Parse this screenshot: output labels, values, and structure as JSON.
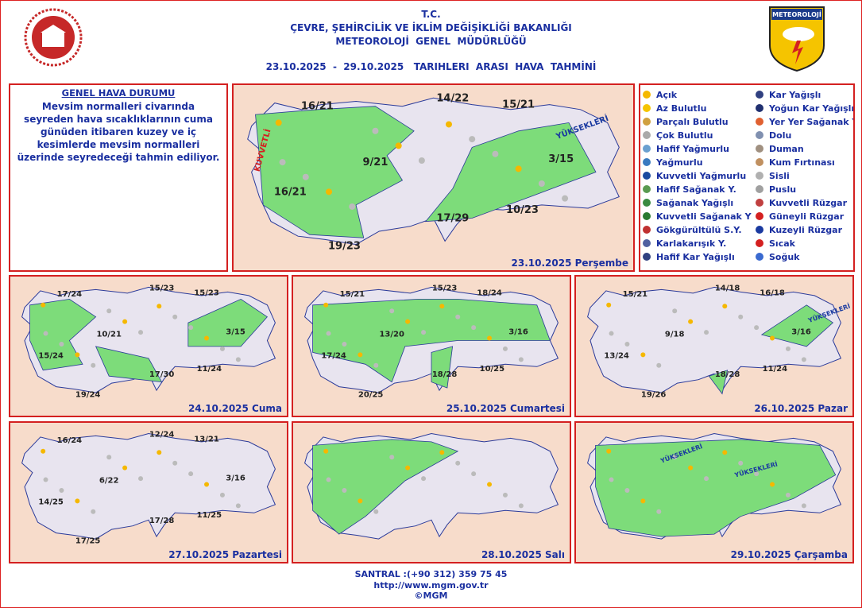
{
  "header": {
    "line1": "T.C.",
    "line2": "ÇEVRE, ŞEHİRCİLİK VE İKLİM DEĞİŞİKLİĞİ BAKANLIĞI",
    "line3": "METEOROLOJİ  GENEL  MÜDÜRLÜĞÜ",
    "period": "23.10.2025  -  29.10.2025   TARIHLERI  ARASI  HAVA  TAHMİNİ",
    "logo_text": "METEOROLOJİ"
  },
  "general": {
    "title": "GENEL HAVA DURUMU",
    "text": "Mevsim normalleri civarında seyreden hava sıcaklıklarının cuma günüden itibaren kuzey ve iç kesimlerde mevsim normalleri üzerinde seyredeceği tahmin ediliyor."
  },
  "legend": {
    "items": [
      "Açık",
      "Az Bulutlu",
      "Parçalı Bulutlu",
      "Çok Bulutlu",
      "Hafif Yağmurlu",
      "Yağmurlu",
      "Kuvvetli Yağmurlu",
      "Hafif Sağanak Y.",
      "Sağanak Yağışlı",
      "Kuvvetli Sağanak Y",
      "Gökgürültülü S.Y.",
      "Karlakarışık Y.",
      "Hafif Kar Yağışlı",
      "Kar Yağışlı",
      "Yoğun Kar Yağışlı",
      "Yer Yer Sağanak Y.",
      "Dolu",
      "Duman",
      "Kum Fırtınası",
      "Sisli",
      "Puslu",
      "Kuvvetli Rüzgar",
      "Güneyli Rüzgar",
      "Kuzeyli Rüzgar",
      "Sıcak",
      "Soğuk"
    ]
  },
  "maps": [
    {
      "date": "23.10.2025 Perşembe",
      "temps": [
        "16/21",
        "14/22",
        "15/21",
        "9/21",
        "3/15",
        "16/21",
        "10/23",
        "17/29",
        "19/23"
      ],
      "notes": [
        "KUVVETLİ",
        "YÜKSEKLERİ"
      ]
    },
    {
      "date": "24.10.2025 Cuma",
      "temps": [
        "17/24",
        "15/23",
        "15/23",
        "10/21",
        "3/15",
        "15/24",
        "11/24",
        "17/30",
        "19/24"
      ]
    },
    {
      "date": "25.10.2025 Cumartesi",
      "temps": [
        "15/21",
        "15/23",
        "18/24",
        "13/20",
        "3/16",
        "17/24",
        "10/25",
        "18/28",
        "20/25"
      ]
    },
    {
      "date": "26.10.2025 Pazar",
      "temps": [
        "15/21",
        "14/18",
        "16/18",
        "9/18",
        "3/16",
        "13/24",
        "11/24",
        "18/28",
        "19/26"
      ],
      "notes": [
        "YÜKSEKLERİ"
      ]
    },
    {
      "date": "27.10.2025 Pazartesi",
      "temps": [
        "16/24",
        "12/24",
        "13/21",
        "6/22",
        "3/16",
        "14/25",
        "11/25",
        "17/28",
        "17/25"
      ]
    },
    {
      "date": "28.10.2025 Salı"
    },
    {
      "date": "29.10.2025 Çarşamba",
      "notes": [
        "YÜKSEKLERİ",
        "YÜKSEKLERİ"
      ]
    }
  ],
  "footer": {
    "phone": "SANTRAL :(+90 312) 359 75 45",
    "url": "http://www.mgm.gov.tr",
    "copyright": "©MGM"
  }
}
